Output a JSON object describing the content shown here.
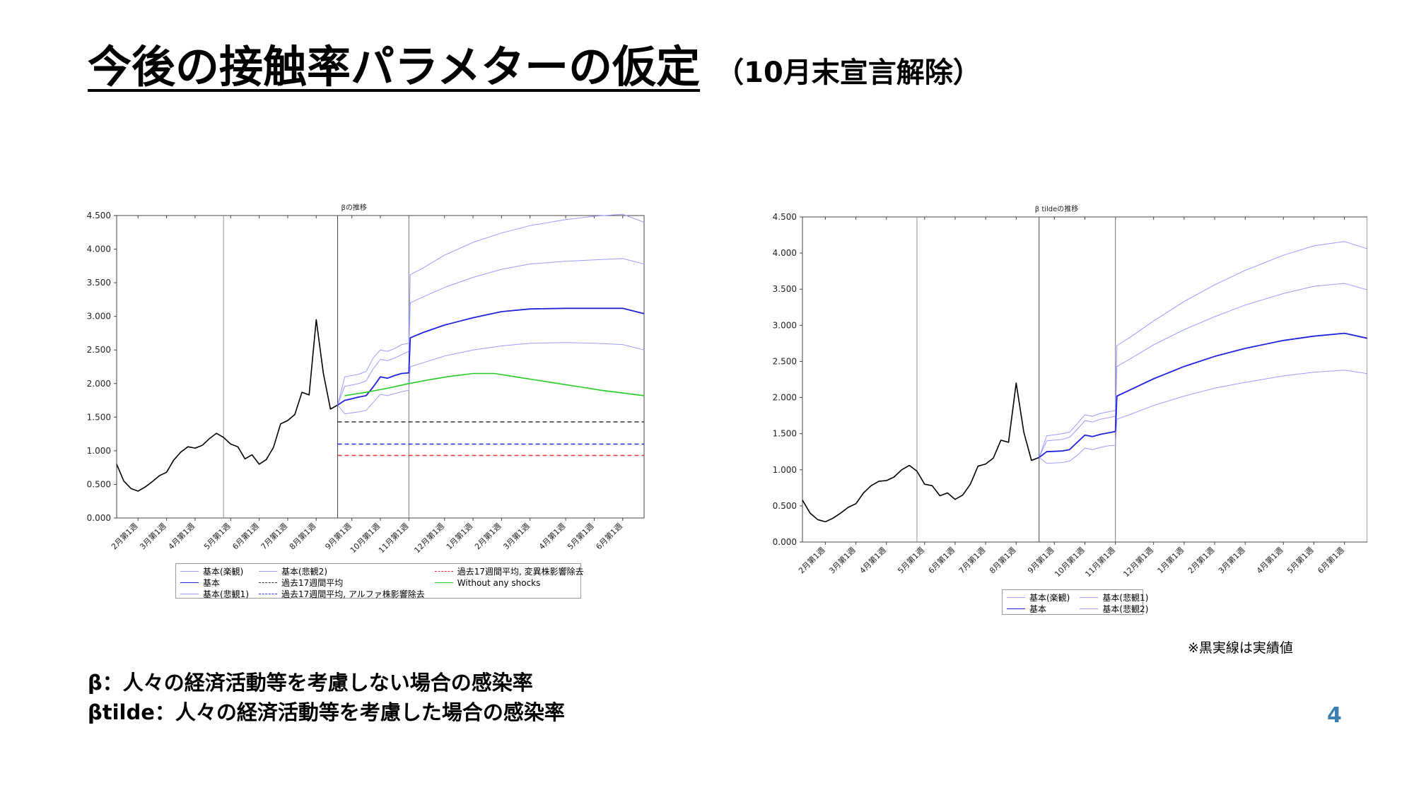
{
  "slide": {
    "title": "今後の接触率パラメターの仮定",
    "subtitle": "（10月末宣言解除）",
    "note": "※黒実線は実績値",
    "definition_beta": "β：人々の経済活動等を考慮しない場合の感染率",
    "definition_beta_tilde": "βtilde：人々の経済活動等を考慮した場合の感染率",
    "page_number": "4"
  },
  "chart_data": [
    {
      "type": "line",
      "title": "βの推移",
      "xlabel": "",
      "ylabel": "",
      "ylim": [
        0,
        4.5
      ],
      "yticks": [
        0,
        0.5,
        1.0,
        1.5,
        2.0,
        2.5,
        3.0,
        3.5,
        4.0,
        4.5
      ],
      "ytick_labels": [
        "0.000",
        "0.500",
        "1.000",
        "1.500",
        "2.000",
        "2.500",
        "3.000",
        "3.500",
        "4.000",
        "4.500"
      ],
      "x_range_weeks": [
        0,
        74
      ],
      "xticks": [
        {
          "week": 3,
          "label": "2月第1週"
        },
        {
          "week": 7,
          "label": "3月第1週"
        },
        {
          "week": 11,
          "label": "4月第1週"
        },
        {
          "week": 16,
          "label": "5月第1週"
        },
        {
          "week": 20,
          "label": "6月第1週"
        },
        {
          "week": 24,
          "label": "7月第1週"
        },
        {
          "week": 28,
          "label": "8月第1週"
        },
        {
          "week": 33,
          "label": "9月第1週"
        },
        {
          "week": 37,
          "label": "10月第1週"
        },
        {
          "week": 41,
          "label": "11月第1週"
        },
        {
          "week": 46,
          "label": "12月第1週"
        },
        {
          "week": 50,
          "label": "1月第1週"
        },
        {
          "week": 54,
          "label": "2月第1週"
        },
        {
          "week": 58,
          "label": "3月第1週"
        },
        {
          "week": 63,
          "label": "4月第1週"
        },
        {
          "week": 67,
          "label": "5月第1週"
        },
        {
          "week": 71,
          "label": "6月第1週"
        }
      ],
      "vlines": [
        {
          "week": 15,
          "color": "#909090"
        },
        {
          "week": 31,
          "color": "#444444"
        },
        {
          "week": 41,
          "color": "#777777"
        }
      ],
      "legend": {
        "placement": "bottom",
        "columns": 3,
        "entries": [
          "基本(楽観)",
          "基本(悲観2)",
          "過去17週間平均, 変異株影響除去",
          "基本",
          "過去17週間平均",
          "Without any shocks",
          "基本(悲観1)",
          "過去17週間平均, アルファ株影響除去"
        ]
      },
      "series": [
        {
          "name": "実績値",
          "color": "#000000",
          "width": 1.6,
          "dash": "",
          "x": [
            0,
            1,
            2,
            3,
            4,
            5,
            6,
            7,
            8,
            9,
            10,
            11,
            12,
            13,
            14,
            15,
            16,
            17,
            18,
            19,
            20,
            21,
            22,
            23,
            24,
            25,
            26,
            27,
            28,
            29,
            30,
            31
          ],
          "y": [
            0.8,
            0.55,
            0.44,
            0.4,
            0.46,
            0.54,
            0.63,
            0.68,
            0.86,
            0.98,
            1.06,
            1.04,
            1.08,
            1.18,
            1.26,
            1.2,
            1.1,
            1.06,
            0.88,
            0.94,
            0.8,
            0.87,
            1.05,
            1.4,
            1.45,
            1.54,
            1.87,
            1.83,
            2.95,
            2.15,
            1.62,
            1.68
          ]
        },
        {
          "name": "基本(楽観)",
          "color": "#9b9bff",
          "width": 1,
          "dash": "",
          "x": [
            31,
            32,
            34,
            35,
            36,
            37,
            38,
            39,
            40,
            41,
            41.2,
            43,
            46,
            50,
            54,
            58,
            63,
            67,
            71,
            74
          ],
          "y": [
            1.68,
            2.1,
            2.14,
            2.18,
            2.38,
            2.5,
            2.48,
            2.52,
            2.58,
            2.6,
            3.62,
            3.72,
            3.91,
            4.1,
            4.24,
            4.35,
            4.44,
            4.49,
            4.52,
            4.4
          ]
        },
        {
          "name": "基本(悲観2)",
          "color": "#9b9bff",
          "width": 1,
          "dash": "",
          "x": [
            31,
            32,
            34,
            35,
            36,
            37,
            38,
            39,
            40,
            41,
            41.2,
            43,
            46,
            50,
            54,
            58,
            63,
            67,
            71,
            74
          ],
          "y": [
            1.68,
            1.96,
            2.0,
            2.04,
            2.22,
            2.36,
            2.34,
            2.38,
            2.43,
            2.48,
            3.2,
            3.29,
            3.43,
            3.58,
            3.7,
            3.78,
            3.82,
            3.84,
            3.86,
            3.78
          ]
        },
        {
          "name": "基本",
          "color": "#2222dd",
          "width": 1.8,
          "dash": "",
          "x": [
            31,
            32,
            34,
            35,
            36,
            37,
            38,
            39,
            40,
            41,
            41.2,
            43,
            46,
            50,
            54,
            58,
            63,
            67,
            71,
            74
          ],
          "y": [
            1.68,
            1.75,
            1.8,
            1.82,
            1.95,
            2.1,
            2.08,
            2.12,
            2.15,
            2.16,
            2.68,
            2.76,
            2.87,
            2.98,
            3.07,
            3.11,
            3.12,
            3.12,
            3.12,
            3.04
          ]
        },
        {
          "name": "基本(悲観1)",
          "color": "#9b9bff",
          "width": 1,
          "dash": "",
          "x": [
            31,
            32,
            34,
            35,
            36,
            37,
            38,
            39,
            40,
            41,
            41.2,
            43,
            46,
            50,
            54,
            58,
            63,
            67,
            71,
            74
          ],
          "y": [
            1.68,
            1.55,
            1.58,
            1.6,
            1.72,
            1.84,
            1.82,
            1.85,
            1.88,
            1.9,
            2.25,
            2.31,
            2.41,
            2.5,
            2.56,
            2.6,
            2.61,
            2.6,
            2.58,
            2.5
          ]
        },
        {
          "name": "Without any shocks",
          "color": "#22cc22",
          "width": 1.6,
          "dash": "",
          "x": [
            32,
            35,
            38,
            41,
            44,
            47,
            50,
            53,
            56,
            59,
            62,
            65,
            68,
            71,
            74
          ],
          "y": [
            1.82,
            1.87,
            1.93,
            2.0,
            2.06,
            2.11,
            2.15,
            2.15,
            2.1,
            2.05,
            2.0,
            1.95,
            1.9,
            1.86,
            1.82
          ]
        },
        {
          "name": "過去17週間平均",
          "color": "#333333",
          "width": 1.6,
          "dash": "6,4",
          "x": [
            31,
            74
          ],
          "y": [
            1.43,
            1.43
          ]
        },
        {
          "name": "過去17週間平均, アルファ株影響除去",
          "color": "#3333ee",
          "width": 1.6,
          "dash": "6,4",
          "x": [
            31,
            74
          ],
          "y": [
            1.1,
            1.1
          ]
        },
        {
          "name": "過去17週間平均, 変異株影響除去",
          "color": "#ee3333",
          "width": 1.6,
          "dash": "6,4",
          "x": [
            31,
            74
          ],
          "y": [
            0.93,
            0.93
          ]
        }
      ]
    },
    {
      "type": "line",
      "title": "β tildeの推移",
      "xlabel": "",
      "ylabel": "",
      "ylim": [
        0,
        4.5
      ],
      "yticks": [
        0,
        0.5,
        1.0,
        1.5,
        2.0,
        2.5,
        3.0,
        3.5,
        4.0,
        4.5
      ],
      "ytick_labels": [
        "0.000",
        "0.500",
        "1.000",
        "1.500",
        "2.000",
        "2.500",
        "3.000",
        "3.500",
        "4.000",
        "4.500"
      ],
      "x_range_weeks": [
        0,
        74
      ],
      "xticks": [
        {
          "week": 3,
          "label": "2月第1週"
        },
        {
          "week": 7,
          "label": "3月第1週"
        },
        {
          "week": 11,
          "label": "4月第1週"
        },
        {
          "week": 16,
          "label": "5月第1週"
        },
        {
          "week": 20,
          "label": "6月第1週"
        },
        {
          "week": 24,
          "label": "7月第1週"
        },
        {
          "week": 28,
          "label": "8月第1週"
        },
        {
          "week": 33,
          "label": "9月第1週"
        },
        {
          "week": 37,
          "label": "10月第1週"
        },
        {
          "week": 41,
          "label": "11月第1週"
        },
        {
          "week": 46,
          "label": "12月第1週"
        },
        {
          "week": 50,
          "label": "1月第1週"
        },
        {
          "week": 54,
          "label": "2月第1週"
        },
        {
          "week": 58,
          "label": "3月第1週"
        },
        {
          "week": 63,
          "label": "4月第1週"
        },
        {
          "week": 67,
          "label": "5月第1週"
        },
        {
          "week": 71,
          "label": "6月第1週"
        }
      ],
      "vlines": [
        {
          "week": 15,
          "color": "#909090"
        },
        {
          "week": 31,
          "color": "#444444"
        },
        {
          "week": 41,
          "color": "#777777"
        }
      ],
      "legend": {
        "placement": "bottom",
        "columns": 2,
        "entries": [
          "基本(楽観)",
          "基本(悲観1)",
          "基本",
          "基本(悲観2)"
        ]
      },
      "series": [
        {
          "name": "実績値",
          "color": "#000000",
          "width": 1.6,
          "dash": "",
          "x": [
            0,
            1,
            2,
            3,
            4,
            5,
            6,
            7,
            8,
            9,
            10,
            11,
            12,
            13,
            14,
            15,
            16,
            17,
            18,
            19,
            20,
            21,
            22,
            23,
            24,
            25,
            26,
            27,
            28,
            29,
            30,
            31
          ],
          "y": [
            0.58,
            0.4,
            0.31,
            0.28,
            0.33,
            0.4,
            0.48,
            0.53,
            0.68,
            0.78,
            0.84,
            0.85,
            0.9,
            1.0,
            1.06,
            0.98,
            0.8,
            0.78,
            0.64,
            0.68,
            0.59,
            0.65,
            0.8,
            1.05,
            1.08,
            1.16,
            1.41,
            1.38,
            2.2,
            1.52,
            1.13,
            1.17
          ]
        },
        {
          "name": "基本(楽観)",
          "color": "#9b9bff",
          "width": 1,
          "dash": "",
          "x": [
            31,
            32,
            34,
            35,
            36,
            37,
            38,
            39,
            40,
            41,
            41.2,
            43,
            46,
            50,
            54,
            58,
            63,
            67,
            71,
            74
          ],
          "y": [
            1.17,
            1.47,
            1.5,
            1.52,
            1.64,
            1.76,
            1.74,
            1.78,
            1.8,
            1.82,
            2.72,
            2.84,
            3.06,
            3.33,
            3.56,
            3.76,
            3.97,
            4.1,
            4.16,
            4.06
          ]
        },
        {
          "name": "基本(悲観2)",
          "color": "#9b9bff",
          "width": 1,
          "dash": "",
          "x": [
            31,
            32,
            34,
            35,
            36,
            37,
            38,
            39,
            40,
            41,
            41.2,
            43,
            46,
            50,
            54,
            58,
            63,
            67,
            71,
            74
          ],
          "y": [
            1.17,
            1.4,
            1.42,
            1.45,
            1.56,
            1.68,
            1.66,
            1.7,
            1.72,
            1.74,
            2.43,
            2.54,
            2.73,
            2.94,
            3.12,
            3.28,
            3.44,
            3.54,
            3.58,
            3.49
          ]
        },
        {
          "name": "基本",
          "color": "#2222dd",
          "width": 1.8,
          "dash": "",
          "x": [
            31,
            32,
            34,
            35,
            36,
            37,
            38,
            39,
            40,
            41,
            41.2,
            43,
            46,
            50,
            54,
            58,
            63,
            67,
            71,
            74
          ],
          "y": [
            1.17,
            1.25,
            1.26,
            1.28,
            1.38,
            1.48,
            1.46,
            1.49,
            1.51,
            1.53,
            2.02,
            2.11,
            2.26,
            2.43,
            2.57,
            2.68,
            2.79,
            2.85,
            2.89,
            2.82
          ]
        },
        {
          "name": "基本(悲観1)",
          "color": "#9b9bff",
          "width": 1,
          "dash": "",
          "x": [
            31,
            32,
            34,
            35,
            36,
            37,
            38,
            39,
            40,
            41,
            41.2,
            43,
            46,
            50,
            54,
            58,
            63,
            67,
            71,
            74
          ],
          "y": [
            1.17,
            1.09,
            1.1,
            1.12,
            1.2,
            1.3,
            1.28,
            1.31,
            1.33,
            1.34,
            1.7,
            1.77,
            1.89,
            2.02,
            2.13,
            2.21,
            2.3,
            2.35,
            2.38,
            2.33
          ]
        }
      ]
    }
  ],
  "legend_styles": {
    "基本(楽観)": {
      "color": "#9b9bff",
      "dash": false
    },
    "基本(悲観1)": {
      "color": "#9b9bff",
      "dash": false
    },
    "基本(悲観2)": {
      "color": "#9b9bff",
      "dash": false
    },
    "基本": {
      "color": "#2222dd",
      "dash": false
    },
    "過去17週間平均": {
      "color": "#333333",
      "dash": true
    },
    "過去17週間平均, アルファ株影響除去": {
      "color": "#3333ee",
      "dash": true
    },
    "過去17週間平均, 変異株影響除去": {
      "color": "#ee3333",
      "dash": true
    },
    "Without any shocks": {
      "color": "#22cc22",
      "dash": false
    }
  }
}
